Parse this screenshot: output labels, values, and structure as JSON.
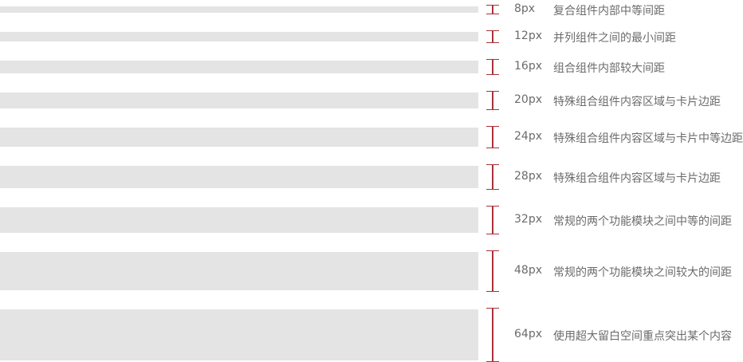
{
  "marker_color": "#a8323a",
  "bar_color": "#e4e4e4",
  "spacings": [
    {
      "size": "8px",
      "value": 8,
      "description": "复合组件内部中等间距"
    },
    {
      "size": "12px",
      "value": 12,
      "description": "并列组件之间的最小间距"
    },
    {
      "size": "16px",
      "value": 16,
      "description": "组合组件内部较大间距"
    },
    {
      "size": "20px",
      "value": 20,
      "description": "特殊组合组件内容区域与卡片边距"
    },
    {
      "size": "24px",
      "value": 24,
      "description": "特殊组合组件内容区域与卡片中等边距"
    },
    {
      "size": "28px",
      "value": 28,
      "description": "特殊组合组件内容区域与卡片边距"
    },
    {
      "size": "32px",
      "value": 32,
      "description": "常规的两个功能模块之间中等的间距"
    },
    {
      "size": "48px",
      "value": 48,
      "description": "常规的两个功能模块之间较大的间距"
    },
    {
      "size": "64px",
      "value": 64,
      "description": "使用超大留白空间重点突出某个内容"
    }
  ]
}
